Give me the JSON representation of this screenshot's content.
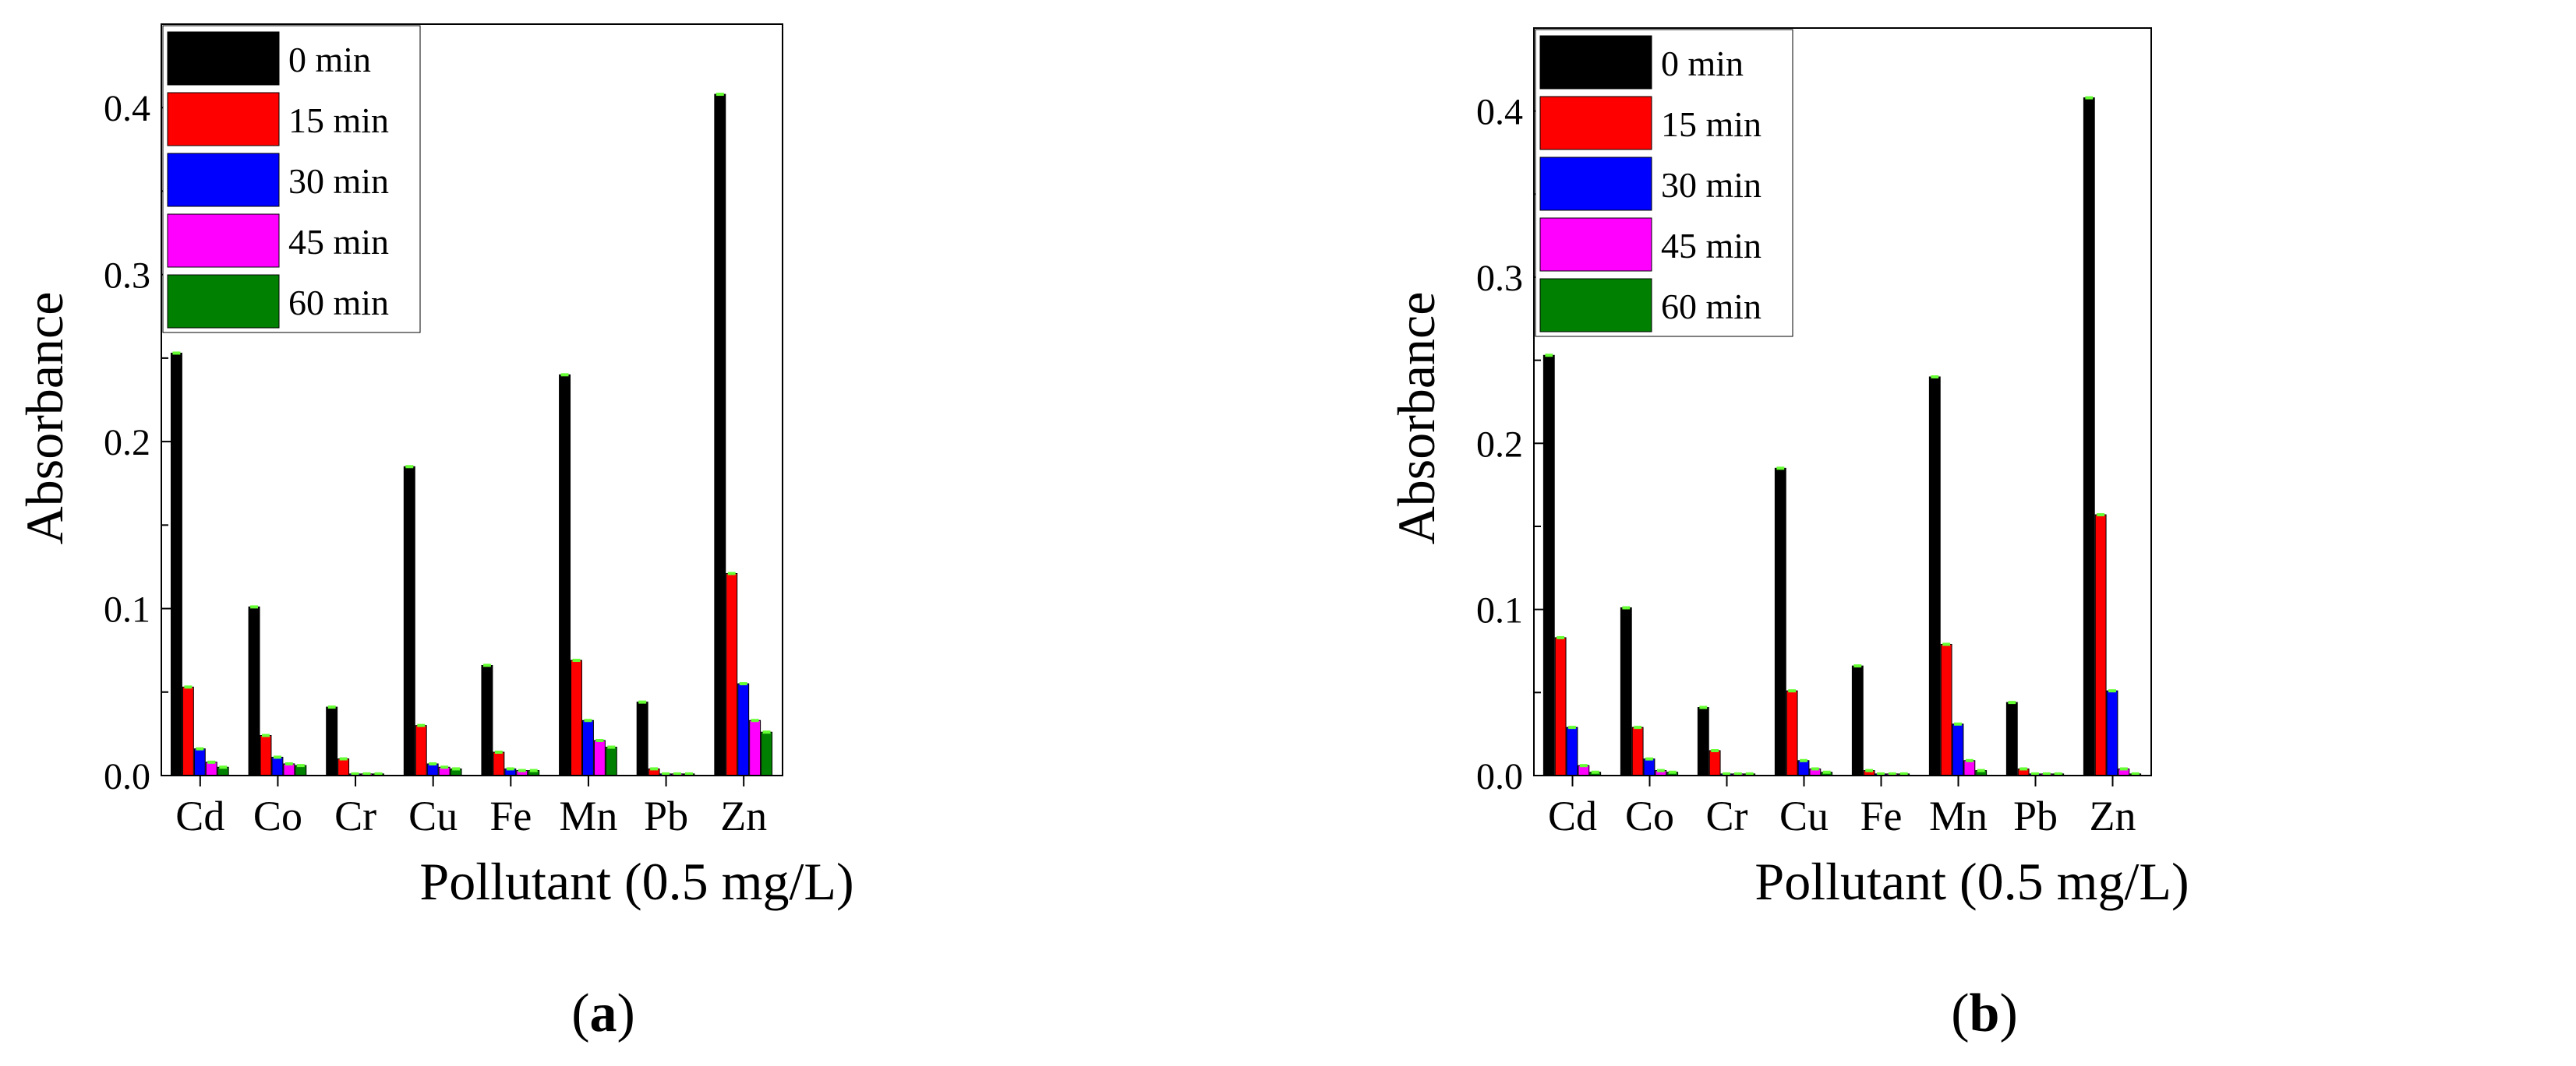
{
  "colors": {
    "series": [
      "#000000",
      "#ff0000",
      "#0000ff",
      "#ff00ff",
      "#008000"
    ],
    "cap": "#66ff33",
    "axis": "#000000"
  },
  "chart_data": [
    {
      "type": "bar",
      "panel_label": "a",
      "caption_open": "(",
      "caption_close": ")",
      "xlabel": "Pollutant (0.5 mg/L)",
      "ylabel": "Absorbance",
      "ylim": [
        0,
        0.45
      ],
      "yticks": [
        "0.0",
        "0.1",
        "0.2",
        "0.3",
        "0.4"
      ],
      "categories": [
        "Cd",
        "Co",
        "Cr",
        "Cu",
        "Fe",
        "Mn",
        "Pb",
        "Zn"
      ],
      "legend_position": "top-left",
      "series": [
        {
          "name": "0 min",
          "values": [
            0.253,
            0.101,
            0.041,
            0.185,
            0.066,
            0.24,
            0.044,
            0.408
          ]
        },
        {
          "name": "15 min",
          "values": [
            0.053,
            0.024,
            0.01,
            0.03,
            0.014,
            0.069,
            0.004,
            0.121
          ]
        },
        {
          "name": "30 min",
          "values": [
            0.016,
            0.011,
            0.001,
            0.007,
            0.004,
            0.033,
            0.001,
            0.055
          ]
        },
        {
          "name": "45 min",
          "values": [
            0.008,
            0.007,
            0.001,
            0.005,
            0.003,
            0.021,
            0.001,
            0.033
          ]
        },
        {
          "name": "60 min",
          "values": [
            0.005,
            0.006,
            0.001,
            0.004,
            0.003,
            0.017,
            0.001,
            0.026
          ]
        }
      ]
    },
    {
      "type": "bar",
      "panel_label": "b",
      "caption_open": "(",
      "caption_close": ")",
      "xlabel": "Pollutant (0.5 mg/L)",
      "ylabel": "Absorbance",
      "ylim": [
        0,
        0.45
      ],
      "yticks": [
        "0.0",
        "0.1",
        "0.2",
        "0.3",
        "0.4"
      ],
      "categories": [
        "Cd",
        "Co",
        "Cr",
        "Cu",
        "Fe",
        "Mn",
        "Pb",
        "Zn"
      ],
      "legend_position": "top-left",
      "series": [
        {
          "name": "0 min",
          "values": [
            0.253,
            0.101,
            0.041,
            0.185,
            0.066,
            0.24,
            0.044,
            0.408
          ]
        },
        {
          "name": "15 min",
          "values": [
            0.083,
            0.029,
            0.015,
            0.051,
            0.003,
            0.079,
            0.004,
            0.157
          ]
        },
        {
          "name": "30 min",
          "values": [
            0.029,
            0.01,
            0.001,
            0.009,
            0.001,
            0.031,
            0.001,
            0.051
          ]
        },
        {
          "name": "45 min",
          "values": [
            0.006,
            0.003,
            0.001,
            0.004,
            0.001,
            0.009,
            0.001,
            0.004
          ]
        },
        {
          "name": "60 min",
          "values": [
            0.002,
            0.002,
            0.001,
            0.002,
            0.001,
            0.003,
            0.001,
            0.001
          ]
        }
      ]
    }
  ]
}
